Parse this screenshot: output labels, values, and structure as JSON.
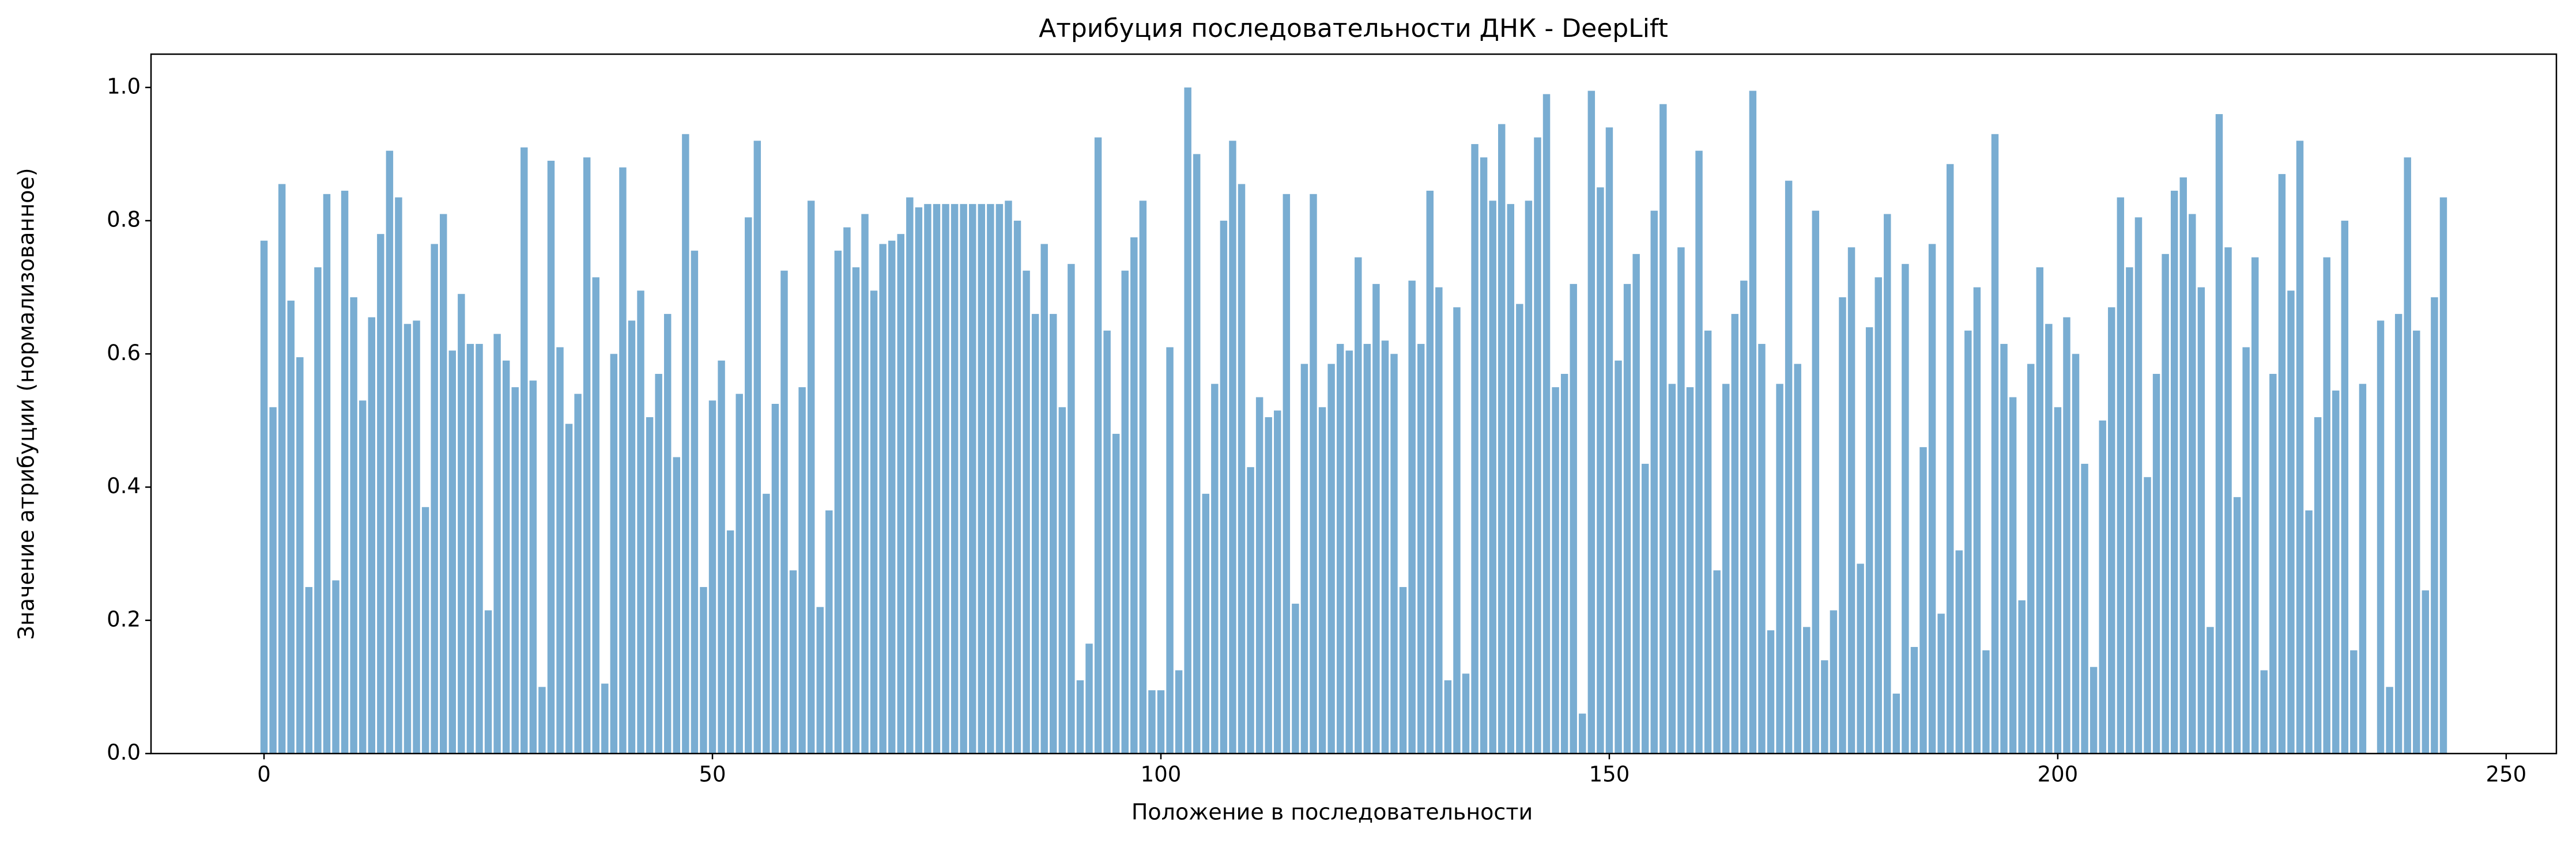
{
  "chart_data": {
    "type": "bar",
    "title": "Атрибуция последовательности ДНК - DeepLift",
    "xlabel": "Положение в последовательности",
    "ylabel": "Значение атрибуции (нормализованное)",
    "color": "#79add2",
    "x": [
      0,
      1,
      2,
      3,
      4,
      5,
      6,
      7,
      8,
      9,
      10,
      11,
      12,
      13,
      14,
      15,
      16,
      17,
      18,
      19,
      20,
      21,
      22,
      23,
      24,
      25,
      26,
      27,
      28,
      29,
      30,
      31,
      32,
      33,
      34,
      35,
      36,
      37,
      38,
      39,
      40,
      41,
      42,
      43,
      44,
      45,
      46,
      47,
      48,
      49,
      50,
      51,
      52,
      53,
      54,
      55,
      56,
      57,
      58,
      59,
      60,
      61,
      62,
      63,
      64,
      65,
      66,
      67,
      68,
      69,
      70,
      71,
      72,
      73,
      74,
      75,
      76,
      77,
      78,
      79,
      80,
      81,
      82,
      83,
      84,
      85,
      86,
      87,
      88,
      89,
      90,
      91,
      92,
      93,
      94,
      95,
      96,
      97,
      98,
      99,
      100,
      101,
      102,
      103,
      104,
      105,
      106,
      107,
      108,
      109,
      110,
      111,
      112,
      113,
      114,
      115,
      116,
      117,
      118,
      119,
      120,
      121,
      122,
      123,
      124,
      125,
      126,
      127,
      128,
      129,
      130,
      131,
      132,
      133,
      134,
      135,
      136,
      137,
      138,
      139,
      140,
      141,
      142,
      143,
      144,
      145,
      146,
      147,
      148,
      149,
      150,
      151,
      152,
      153,
      154,
      155,
      156,
      157,
      158,
      159,
      160,
      161,
      162,
      163,
      164,
      165,
      166,
      167,
      168,
      169,
      170,
      171,
      172,
      173,
      174,
      175,
      176,
      177,
      178,
      179,
      180,
      181,
      182,
      183,
      184,
      185,
      186,
      187,
      188,
      189,
      190,
      191,
      192,
      193,
      194,
      195,
      196,
      197,
      198,
      199,
      200,
      201,
      202,
      203,
      204,
      205,
      206,
      207,
      208,
      209,
      210,
      211,
      212,
      213,
      214,
      215,
      216,
      217,
      218,
      219,
      220,
      221,
      222,
      223,
      224,
      225,
      226,
      227,
      228,
      229,
      230,
      231,
      232,
      233,
      234,
      235,
      236,
      237,
      238,
      239,
      240,
      241,
      242,
      243
    ],
    "values": [
      0.77,
      0.52,
      0.855,
      0.68,
      0.595,
      0.25,
      0.73,
      0.84,
      0.26,
      0.845,
      0.685,
      0.53,
      0.655,
      0.78,
      0.905,
      0.835,
      0.645,
      0.65,
      0.37,
      0.765,
      0.81,
      0.605,
      0.69,
      0.615,
      0.615,
      0.215,
      0.63,
      0.59,
      0.55,
      0.91,
      0.56,
      0.1,
      0.89,
      0.61,
      0.495,
      0.54,
      0.895,
      0.715,
      0.105,
      0.6,
      0.88,
      0.65,
      0.695,
      0.505,
      0.57,
      0.66,
      0.445,
      0.93,
      0.755,
      0.25,
      0.53,
      0.59,
      0.335,
      0.54,
      0.805,
      0.92,
      0.39,
      0.525,
      0.725,
      0.275,
      0.55,
      0.83,
      0.22,
      0.365,
      0.755,
      0.79,
      0.73,
      0.81,
      0.695,
      0.765,
      0.77,
      0.78,
      0.835,
      0.82,
      0.825,
      0.825,
      0.825,
      0.825,
      0.825,
      0.825,
      0.825,
      0.825,
      0.825,
      0.83,
      0.8,
      0.725,
      0.66,
      0.765,
      0.66,
      0.52,
      0.735,
      0.11,
      0.165,
      0.925,
      0.635,
      0.48,
      0.725,
      0.775,
      0.83,
      0.095,
      0.095,
      0.61,
      0.125,
      1.0,
      0.9,
      0.39,
      0.555,
      0.8,
      0.92,
      0.855,
      0.43,
      0.535,
      0.505,
      0.515,
      0.84,
      0.225,
      0.585,
      0.84,
      0.52,
      0.585,
      0.615,
      0.605,
      0.745,
      0.615,
      0.705,
      0.62,
      0.6,
      0.25,
      0.71,
      0.615,
      0.845,
      0.7,
      0.11,
      0.67,
      0.12,
      0.915,
      0.895,
      0.83,
      0.945,
      0.825,
      0.675,
      0.83,
      0.925,
      0.99,
      0.55,
      0.57,
      0.705,
      0.06,
      0.995,
      0.85,
      0.94,
      0.59,
      0.705,
      0.75,
      0.435,
      0.815,
      0.975,
      0.555,
      0.76,
      0.55,
      0.905,
      0.635,
      0.275,
      0.555,
      0.66,
      0.71,
      0.995,
      0.615,
      0.185,
      0.555,
      0.86,
      0.585,
      0.19,
      0.815,
      0.14,
      0.215,
      0.685,
      0.76,
      0.285,
      0.64,
      0.715,
      0.81,
      0.09,
      0.735,
      0.16,
      0.46,
      0.765,
      0.21,
      0.885,
      0.305,
      0.635,
      0.7,
      0.155,
      0.93,
      0.615,
      0.535,
      0.23,
      0.585,
      0.73,
      0.645,
      0.52,
      0.655,
      0.6,
      0.435,
      0.13,
      0.5,
      0.67,
      0.835,
      0.73,
      0.805,
      0.415,
      0.57,
      0.75,
      0.845,
      0.865,
      0.81,
      0.7,
      0.19,
      0.96,
      0.76,
      0.385,
      0.61,
      0.745,
      0.125,
      0.57,
      0.87,
      0.695,
      0.92,
      0.365,
      0.505,
      0.745,
      0.545,
      0.8,
      0.155,
      0.555,
      0.0,
      0.65,
      0.1,
      0.66,
      0.895,
      0.635,
      0.245,
      0.685,
      0.835
    ],
    "xlim": [
      -12.6,
      255.6
    ],
    "xticks": [
      0,
      50,
      100,
      150,
      200,
      250
    ],
    "ylim": [
      0,
      1.05
    ],
    "yticks": [
      {
        "value": 0,
        "label": "0.0"
      },
      {
        "value": 0.2,
        "label": "0.2"
      },
      {
        "value": 0.4,
        "label": "0.4"
      },
      {
        "value": 0.6,
        "label": "0.6"
      },
      {
        "value": 0.8,
        "label": "0.8"
      },
      {
        "value": 1.0,
        "label": "1.0"
      }
    ]
  }
}
